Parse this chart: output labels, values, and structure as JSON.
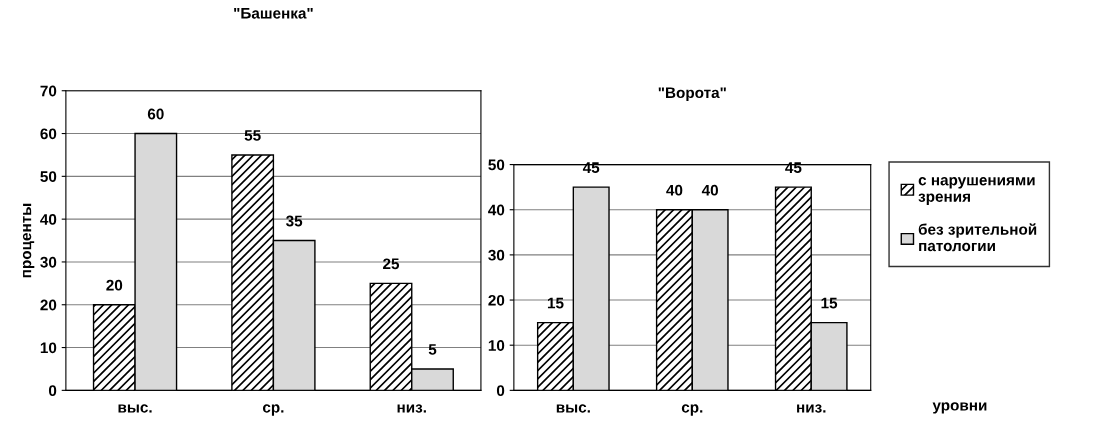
{
  "chart_data": [
    {
      "type": "bar",
      "title": "\"Башенка\"",
      "ylabel": "проценты",
      "categories": [
        "выс.",
        "ср.",
        "низ."
      ],
      "series": [
        {
          "color": "#000000",
          "values": [
            20,
            55,
            25
          ]
        },
        {
          "color": "#d9d9d9",
          "values": [
            60,
            35,
            5
          ]
        }
      ],
      "ylim": [
        0,
        70
      ],
      "yticks": [
        0,
        10,
        20,
        30,
        40,
        50,
        60,
        70
      ],
      "grid": "y",
      "data_labels": true
    },
    {
      "type": "bar",
      "title": "\"Ворота\"",
      "xlabel": "уровни",
      "categories": [
        "выс.",
        "ср.",
        "низ."
      ],
      "series": [
        {
          "name": "с нарушениями зрения",
          "color": "#000000",
          "values": [
            15,
            40,
            45
          ]
        },
        {
          "name": "без зрительной патологии",
          "color": "#d9d9d9",
          "values": [
            45,
            40,
            15
          ]
        }
      ],
      "ylim": [
        0,
        50
      ],
      "yticks": [
        0,
        10,
        20,
        30,
        40,
        50
      ],
      "grid": "y",
      "data_labels": true,
      "legend": "right"
    }
  ]
}
